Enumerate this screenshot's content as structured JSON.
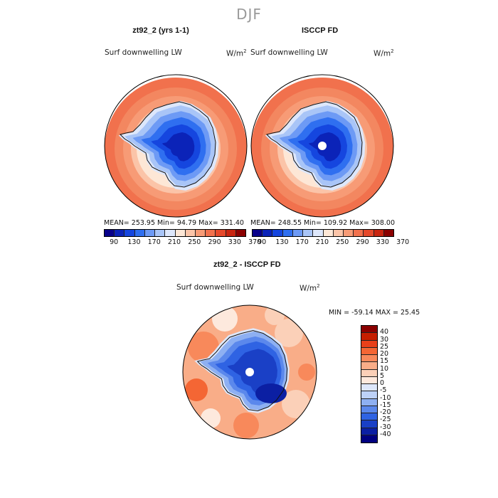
{
  "season": "DJF",
  "panel1": {
    "title": "zt92_2 (yrs 1-1)",
    "variable": "Surf downwelling LW",
    "units": "W/m",
    "units_exp": "2",
    "stats": "MEAN= 253.95   Min=  94.79   Max= 331.40"
  },
  "panel2": {
    "title": "ISCCP FD",
    "variable": "Surf downwelling LW",
    "units": "W/m",
    "units_exp": "2",
    "stats": "MEAN= 248.55   Min= 109.92   Max= 308.00"
  },
  "panel3": {
    "title": "zt92_2 - ISCCP FD",
    "variable": "Surf downwelling LW",
    "units": "W/m",
    "units_exp": "2",
    "stats": "MIN = -59.14 MAX =  25.45"
  },
  "abs_colorbar": {
    "colors": [
      "#08008a",
      "#0b23b8",
      "#1546df",
      "#2f6ff0",
      "#6d9af5",
      "#a9c5f7",
      "#dde7fb",
      "#fde7d6",
      "#fbc4a8",
      "#f79b76",
      "#f1714d",
      "#e5492b",
      "#c82510",
      "#8b0000"
    ],
    "ticks": [
      "90",
      "130",
      "170",
      "210",
      "250",
      "290",
      "330",
      "370"
    ]
  },
  "diff_colorbar": {
    "colors": [
      "#8b0000",
      "#c61e00",
      "#e8401a",
      "#f46634",
      "#f8895b",
      "#f9ad88",
      "#fbd0b8",
      "#fde9dd",
      "#dde7fb",
      "#bdd1f7",
      "#8eb0f2",
      "#5b88ec",
      "#2f63e3",
      "#1a40c6",
      "#0b1fa3",
      "#000080"
    ],
    "ticks": [
      "40",
      "30",
      "25",
      "20",
      "15",
      "10",
      "5",
      "0",
      "-5",
      "-10",
      "-15",
      "-20",
      "-25",
      "-30",
      "-40"
    ]
  }
}
